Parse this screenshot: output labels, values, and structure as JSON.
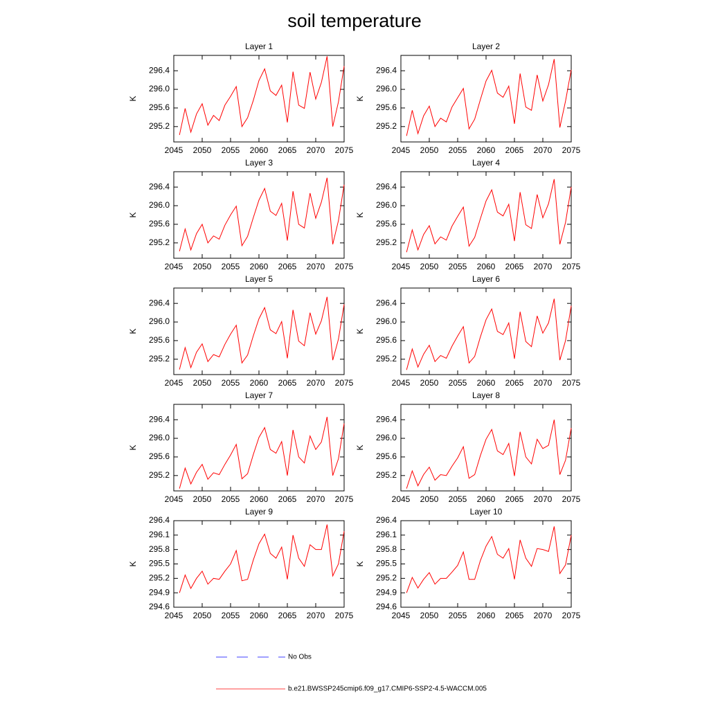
{
  "title": "soil temperature",
  "legend": [
    {
      "name": "No Obs",
      "color": "#0000ff",
      "dashed": true
    },
    {
      "name": "b.e21.BWSSP245cmip6.f09_g17.CMIP6-SSP2-4.5-WACCM.005",
      "color": "#ff0000",
      "dashed": false
    }
  ],
  "chart_data": [
    {
      "type": "line",
      "title": "Layer 1",
      "ylabel": "K",
      "xlim": [
        2045,
        2075
      ],
      "xticks": [
        2045,
        2050,
        2055,
        2060,
        2065,
        2070,
        2075
      ],
      "ylim": [
        294.87,
        296.73
      ],
      "yticks": [
        295.2,
        295.6,
        {
          "value": 296,
          "label": "296.0"
        },
        296.4
      ],
      "grid": false,
      "x": [
        2046,
        2047,
        2048,
        2049,
        2050,
        2051,
        2052,
        2053,
        2054,
        2055,
        2056,
        2057,
        2058,
        2059,
        2060,
        2061,
        2062,
        2063,
        2064,
        2065,
        2066,
        2067,
        2068,
        2069,
        2070,
        2071,
        2072,
        2073,
        2074,
        2075
      ],
      "series": [
        {
          "color": "#ff0000",
          "values": [
            295.02,
            295.59,
            295.08,
            295.47,
            295.69,
            295.23,
            295.44,
            295.33,
            295.66,
            295.85,
            296.06,
            295.2,
            295.39,
            295.76,
            296.19,
            296.44,
            295.97,
            295.87,
            296.09,
            295.29,
            296.38,
            295.66,
            295.59,
            296.37,
            295.79,
            296.15,
            296.71,
            295.2,
            295.73,
            296.5
          ]
        }
      ]
    },
    {
      "type": "line",
      "title": "Layer 2",
      "ylabel": "K",
      "xlim": [
        2045,
        2075
      ],
      "xticks": [
        2045,
        2050,
        2055,
        2060,
        2065,
        2070,
        2075
      ],
      "ylim": [
        294.87,
        296.73
      ],
      "yticks": [
        295.2,
        295.6,
        {
          "value": 296,
          "label": "296.0"
        },
        296.4
      ],
      "grid": false,
      "x": [
        2046,
        2047,
        2048,
        2049,
        2050,
        2051,
        2052,
        2053,
        2054,
        2055,
        2056,
        2057,
        2058,
        2059,
        2060,
        2061,
        2062,
        2063,
        2064,
        2065,
        2066,
        2067,
        2068,
        2069,
        2070,
        2071,
        2072,
        2073,
        2074,
        2075
      ],
      "series": [
        {
          "color": "#ff0000",
          "values": [
            295.0,
            295.55,
            295.05,
            295.43,
            295.64,
            295.2,
            295.38,
            295.3,
            295.62,
            295.82,
            296.02,
            295.15,
            295.36,
            295.78,
            296.18,
            296.41,
            295.92,
            295.83,
            296.07,
            295.26,
            296.34,
            295.62,
            295.55,
            296.31,
            295.75,
            296.1,
            296.65,
            295.18,
            295.75,
            296.42
          ]
        }
      ]
    },
    {
      "type": "line",
      "title": "Layer 3",
      "ylabel": "K",
      "xlim": [
        2045,
        2075
      ],
      "xticks": [
        2045,
        2050,
        2055,
        2060,
        2065,
        2070,
        2075
      ],
      "ylim": [
        294.87,
        296.73
      ],
      "yticks": [
        295.2,
        295.6,
        {
          "value": 296,
          "label": "296.0"
        },
        296.4
      ],
      "grid": false,
      "x": [
        2046,
        2047,
        2048,
        2049,
        2050,
        2051,
        2052,
        2053,
        2054,
        2055,
        2056,
        2057,
        2058,
        2059,
        2060,
        2061,
        2062,
        2063,
        2064,
        2065,
        2066,
        2067,
        2068,
        2069,
        2070,
        2071,
        2072,
        2073,
        2074,
        2075
      ],
      "series": [
        {
          "color": "#ff0000",
          "values": [
            295.02,
            295.5,
            295.05,
            295.4,
            295.6,
            295.2,
            295.35,
            295.28,
            295.58,
            295.8,
            295.99,
            295.14,
            295.34,
            295.74,
            296.12,
            296.37,
            295.88,
            295.79,
            296.05,
            295.25,
            296.31,
            295.6,
            295.52,
            296.27,
            295.73,
            296.08,
            296.6,
            295.17,
            295.68,
            296.45
          ]
        }
      ]
    },
    {
      "type": "line",
      "title": "Layer 4",
      "ylabel": "K",
      "xlim": [
        2045,
        2075
      ],
      "xticks": [
        2045,
        2050,
        2055,
        2060,
        2065,
        2070,
        2075
      ],
      "ylim": [
        294.87,
        296.73
      ],
      "yticks": [
        295.2,
        295.6,
        {
          "value": 296,
          "label": "296.0"
        },
        296.4
      ],
      "grid": false,
      "x": [
        2046,
        2047,
        2048,
        2049,
        2050,
        2051,
        2052,
        2053,
        2054,
        2055,
        2056,
        2057,
        2058,
        2059,
        2060,
        2061,
        2062,
        2063,
        2064,
        2065,
        2066,
        2067,
        2068,
        2069,
        2070,
        2071,
        2072,
        2073,
        2074,
        2075
      ],
      "series": [
        {
          "color": "#ff0000",
          "values": [
            295.0,
            295.48,
            295.05,
            295.38,
            295.57,
            295.18,
            295.33,
            295.26,
            295.56,
            295.77,
            295.97,
            295.13,
            295.32,
            295.72,
            296.1,
            296.34,
            295.86,
            295.78,
            296.03,
            295.24,
            296.29,
            295.59,
            295.51,
            296.24,
            295.74,
            296.04,
            296.57,
            295.17,
            295.64,
            296.4
          ]
        }
      ]
    },
    {
      "type": "line",
      "title": "Layer 5",
      "ylabel": "K",
      "xlim": [
        2045,
        2075
      ],
      "xticks": [
        2045,
        2050,
        2055,
        2060,
        2065,
        2070,
        2075
      ],
      "ylim": [
        294.87,
        296.73
      ],
      "yticks": [
        295.2,
        295.6,
        {
          "value": 296,
          "label": "296.0"
        },
        296.4
      ],
      "grid": false,
      "x": [
        2046,
        2047,
        2048,
        2049,
        2050,
        2051,
        2052,
        2053,
        2054,
        2055,
        2056,
        2057,
        2058,
        2059,
        2060,
        2061,
        2062,
        2063,
        2064,
        2065,
        2066,
        2067,
        2068,
        2069,
        2070,
        2071,
        2072,
        2073,
        2074,
        2075
      ],
      "series": [
        {
          "color": "#ff0000",
          "values": [
            294.98,
            295.45,
            295.02,
            295.35,
            295.53,
            295.15,
            295.3,
            295.25,
            295.52,
            295.74,
            295.93,
            295.12,
            295.29,
            295.7,
            296.07,
            296.31,
            295.83,
            295.75,
            296.01,
            295.22,
            296.26,
            295.59,
            295.49,
            296.2,
            295.74,
            296.03,
            296.54,
            295.18,
            295.63,
            296.38
          ]
        }
      ]
    },
    {
      "type": "line",
      "title": "Layer 6",
      "ylabel": "K",
      "xlim": [
        2045,
        2075
      ],
      "xticks": [
        2045,
        2050,
        2055,
        2060,
        2065,
        2070,
        2075
      ],
      "ylim": [
        294.87,
        296.73
      ],
      "yticks": [
        295.2,
        295.6,
        {
          "value": 296,
          "label": "296.0"
        },
        296.4
      ],
      "grid": false,
      "x": [
        2046,
        2047,
        2048,
        2049,
        2050,
        2051,
        2052,
        2053,
        2054,
        2055,
        2056,
        2057,
        2058,
        2059,
        2060,
        2061,
        2062,
        2063,
        2064,
        2065,
        2066,
        2067,
        2068,
        2069,
        2070,
        2071,
        2072,
        2073,
        2074,
        2075
      ],
      "series": [
        {
          "color": "#ff0000",
          "values": [
            294.97,
            295.42,
            295.03,
            295.31,
            295.5,
            295.15,
            295.28,
            295.22,
            295.48,
            295.7,
            295.9,
            295.12,
            295.26,
            295.68,
            296.05,
            296.28,
            295.8,
            295.73,
            295.98,
            295.21,
            296.22,
            295.58,
            295.47,
            296.13,
            295.76,
            295.98,
            296.5,
            295.18,
            295.6,
            296.35
          ]
        }
      ]
    },
    {
      "type": "line",
      "title": "Layer 7",
      "ylabel": "K",
      "xlim": [
        2045,
        2075
      ],
      "xticks": [
        2045,
        2050,
        2055,
        2060,
        2065,
        2070,
        2075
      ],
      "ylim": [
        294.87,
        296.73
      ],
      "yticks": [
        295.2,
        295.6,
        {
          "value": 296,
          "label": "296.0"
        },
        296.4
      ],
      "grid": false,
      "x": [
        2046,
        2047,
        2048,
        2049,
        2050,
        2051,
        2052,
        2053,
        2054,
        2055,
        2056,
        2057,
        2058,
        2059,
        2060,
        2061,
        2062,
        2063,
        2064,
        2065,
        2066,
        2067,
        2068,
        2069,
        2070,
        2071,
        2072,
        2073,
        2074,
        2075
      ],
      "series": [
        {
          "color": "#ff0000",
          "values": [
            294.92,
            295.36,
            295.02,
            295.27,
            295.44,
            295.12,
            295.26,
            295.22,
            295.44,
            295.64,
            295.87,
            295.13,
            295.24,
            295.65,
            296.02,
            296.23,
            295.76,
            295.68,
            295.93,
            295.2,
            296.18,
            295.6,
            295.47,
            296.05,
            295.76,
            295.92,
            296.46,
            295.2,
            295.56,
            296.32
          ]
        }
      ]
    },
    {
      "type": "line",
      "title": "Layer 8",
      "ylabel": "K",
      "xlim": [
        2045,
        2075
      ],
      "xticks": [
        2045,
        2050,
        2055,
        2060,
        2065,
        2070,
        2075
      ],
      "ylim": [
        294.87,
        296.73
      ],
      "yticks": [
        295.2,
        295.6,
        {
          "value": 296,
          "label": "296.0"
        },
        296.4
      ],
      "grid": false,
      "x": [
        2046,
        2047,
        2048,
        2049,
        2050,
        2051,
        2052,
        2053,
        2054,
        2055,
        2056,
        2057,
        2058,
        2059,
        2060,
        2061,
        2062,
        2063,
        2064,
        2065,
        2066,
        2067,
        2068,
        2069,
        2070,
        2071,
        2072,
        2073,
        2074,
        2075
      ],
      "series": [
        {
          "color": "#ff0000",
          "values": [
            294.92,
            295.3,
            294.98,
            295.22,
            295.38,
            295.1,
            295.22,
            295.2,
            295.4,
            295.58,
            295.82,
            295.14,
            295.22,
            295.63,
            295.98,
            296.19,
            295.73,
            295.65,
            295.89,
            295.19,
            296.14,
            295.6,
            295.45,
            295.98,
            295.78,
            295.85,
            296.4,
            295.22,
            295.53,
            296.22
          ]
        }
      ]
    },
    {
      "type": "line",
      "title": "Layer 9",
      "ylabel": "K",
      "xlim": [
        2045,
        2075
      ],
      "xticks": [
        2045,
        2050,
        2055,
        2060,
        2065,
        2070,
        2075
      ],
      "ylim": [
        294.6,
        296.4
      ],
      "yticks": [
        294.6,
        294.9,
        295.2,
        295.5,
        295.8,
        296.1,
        296.4
      ],
      "grid": false,
      "x": [
        2046,
        2047,
        2048,
        2049,
        2050,
        2051,
        2052,
        2053,
        2054,
        2055,
        2056,
        2057,
        2058,
        2059,
        2060,
        2061,
        2062,
        2063,
        2064,
        2065,
        2066,
        2067,
        2068,
        2069,
        2070,
        2071,
        2072,
        2073,
        2074,
        2075
      ],
      "series": [
        {
          "color": "#ff0000",
          "values": [
            294.9,
            295.27,
            294.99,
            295.2,
            295.35,
            295.08,
            295.2,
            295.18,
            295.35,
            295.5,
            295.78,
            295.15,
            295.18,
            295.58,
            295.92,
            296.12,
            295.72,
            295.62,
            295.85,
            295.18,
            296.1,
            295.62,
            295.45,
            295.9,
            295.8,
            295.8,
            296.32,
            295.25,
            295.5,
            296.18
          ]
        }
      ]
    },
    {
      "type": "line",
      "title": "Layer 10",
      "ylabel": "K",
      "xlim": [
        2045,
        2075
      ],
      "xticks": [
        2045,
        2050,
        2055,
        2060,
        2065,
        2070,
        2075
      ],
      "ylim": [
        294.6,
        296.4
      ],
      "yticks": [
        294.6,
        294.9,
        295.2,
        295.5,
        295.8,
        296.1,
        296.4
      ],
      "grid": false,
      "x": [
        2046,
        2047,
        2048,
        2049,
        2050,
        2051,
        2052,
        2053,
        2054,
        2055,
        2056,
        2057,
        2058,
        2059,
        2060,
        2061,
        2062,
        2063,
        2064,
        2065,
        2066,
        2067,
        2068,
        2069,
        2070,
        2071,
        2072,
        2073,
        2074,
        2075
      ],
      "series": [
        {
          "color": "#ff0000",
          "values": [
            294.9,
            295.22,
            295.0,
            295.18,
            295.32,
            295.08,
            295.2,
            295.2,
            295.33,
            295.47,
            295.75,
            295.18,
            295.18,
            295.57,
            295.87,
            296.07,
            295.7,
            295.62,
            295.82,
            295.18,
            296.0,
            295.62,
            295.45,
            295.82,
            295.8,
            295.76,
            296.28,
            295.3,
            295.48,
            296.1
          ]
        }
      ]
    }
  ]
}
